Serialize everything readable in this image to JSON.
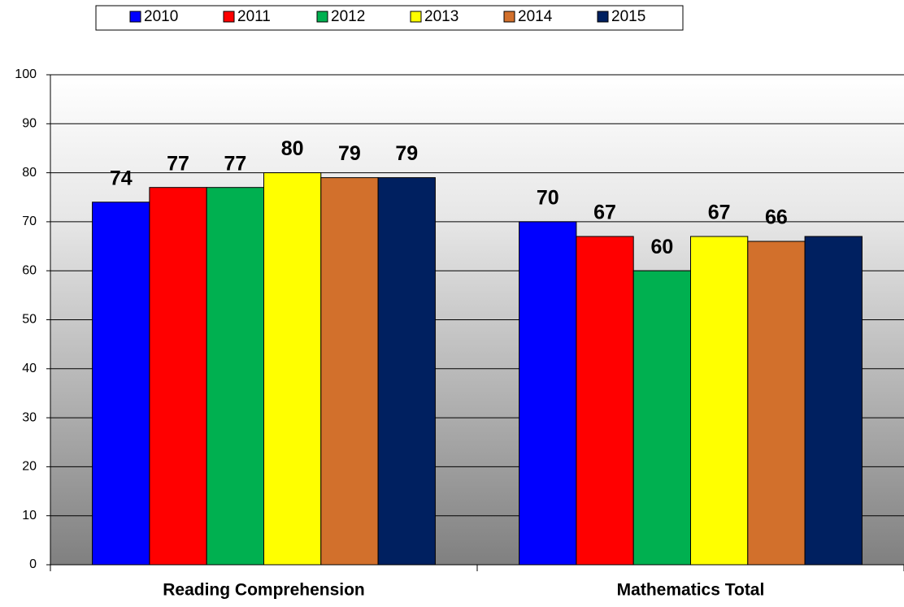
{
  "chart_data": {
    "type": "bar",
    "categories": [
      "Reading Comprehension",
      "Mathematics Total"
    ],
    "series": [
      {
        "name": "2010",
        "color": "#0000ff",
        "values": [
          74,
          70
        ]
      },
      {
        "name": "2011",
        "color": "#ff0000",
        "values": [
          77,
          67
        ]
      },
      {
        "name": "2012",
        "color": "#00b050",
        "values": [
          77,
          60
        ]
      },
      {
        "name": "2013",
        "color": "#ffff00",
        "values": [
          80,
          67
        ]
      },
      {
        "name": "2014",
        "color": "#d2702c",
        "values": [
          79,
          66
        ]
      },
      {
        "name": "2015",
        "color": "#002060",
        "values": [
          79,
          67
        ],
        "value_labels": [
          "79",
          null
        ]
      }
    ],
    "ylim": [
      0,
      100
    ],
    "yticks": [
      0,
      10,
      20,
      30,
      40,
      50,
      60,
      70,
      80,
      90,
      100
    ],
    "grid": true,
    "legend": "top"
  }
}
